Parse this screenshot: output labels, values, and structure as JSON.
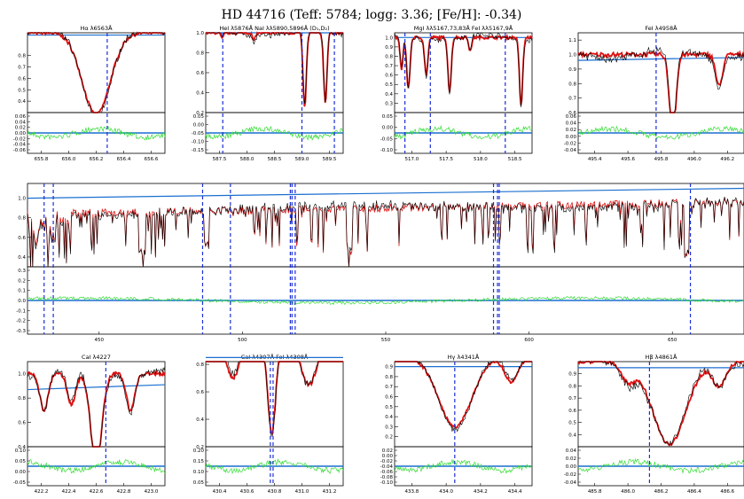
{
  "header": {
    "title": "HD 44716 (Teff: 5784; logg: 3.36; [Fe/H]: -0.34)"
  },
  "colors": {
    "observed": "#000000",
    "model": "#dd1111",
    "continuum": "#1a6fd0",
    "residual": "#33dd33",
    "line_marker": "#1a2fd8",
    "background": "#ffffff"
  },
  "chart_data": [
    {
      "id": "halpha",
      "type": "line",
      "title": "Hα λ6563Å",
      "xticks": [
        "655.8",
        "656.0",
        "656.2",
        "656.4",
        "656.6"
      ],
      "ylim": [
        0.3,
        1.0
      ],
      "yticks": [
        "0.4",
        "0.5",
        "0.6",
        "0.7",
        "0.8"
      ],
      "rticks": [
        "0.06",
        "0.04",
        "0.02",
        "0.00",
        "-0.02",
        "-0.04",
        "-0.06"
      ],
      "line_markers_nm": [
        656.28
      ],
      "continuum": [
        0.98,
        0.98
      ],
      "lines": [
        {
          "c": 0.5,
          "d": 0.72,
          "w": 0.1
        }
      ]
    },
    {
      "id": "hei_nai",
      "type": "line",
      "title": "HeI λ5876Å   NaI λλ5890,5896Å (D₁,D₂)",
      "xticks": [
        "587.5",
        "588.0",
        "588.5",
        "589.0",
        "589.5"
      ],
      "ylim": [
        0.2,
        1.0
      ],
      "yticks": [
        "0.2",
        "0.4",
        "0.6",
        "0.8",
        "1.0"
      ],
      "rticks": [
        "0.05",
        "0.00",
        "-0.05",
        "-0.10",
        "-0.15"
      ],
      "line_markers_nm": [
        587.56,
        589.0,
        589.59
      ],
      "continuum": [
        1.0,
        1.0
      ],
      "lines": [
        {
          "c": 0.72,
          "d": 0.75,
          "w": 0.012
        },
        {
          "c": 0.87,
          "d": 0.7,
          "w": 0.012
        },
        {
          "c": 0.12,
          "d": 0.06,
          "w": 0.01
        },
        {
          "c": 0.35,
          "d": 0.08,
          "w": 0.01
        }
      ]
    },
    {
      "id": "mgi_fei",
      "type": "line",
      "title": "MgI λλ5167,73,83Å   FeI λλ5167,9Å",
      "xticks": [
        "517.0",
        "517.5",
        "518.0",
        "518.5"
      ],
      "ylim": [
        0.2,
        1.05
      ],
      "yticks": [
        "0.3",
        "0.4",
        "0.5",
        "0.6",
        "0.7",
        "0.8",
        "0.9",
        "1.0"
      ],
      "rticks": [
        "0.05",
        "0.00",
        "-0.05",
        "-0.10"
      ],
      "line_markers_nm": [
        516.73,
        516.9,
        517.27,
        518.36
      ],
      "continuum": [
        1.0,
        1.0
      ],
      "lines": [
        {
          "c": 0.1,
          "d": 0.55,
          "w": 0.012
        },
        {
          "c": 0.23,
          "d": 0.4,
          "w": 0.012
        },
        {
          "c": 0.4,
          "d": 0.58,
          "w": 0.012
        },
        {
          "c": 0.92,
          "d": 0.72,
          "w": 0.012
        },
        {
          "c": 0.05,
          "d": 0.35,
          "w": 0.01
        },
        {
          "c": 0.55,
          "d": 0.15,
          "w": 0.01
        }
      ]
    },
    {
      "id": "fei4958",
      "type": "line",
      "title": "FeI λ4958Å",
      "xticks": [
        "495.4",
        "495.6",
        "495.8",
        "496.0",
        "496.2"
      ],
      "ylim": [
        0.6,
        1.15
      ],
      "yticks": [
        "0.6",
        "0.7",
        "0.8",
        "0.9",
        "1.0",
        "1.1"
      ],
      "rticks": [
        "0.06",
        "0.04",
        "0.02",
        "0.00",
        "-0.02",
        "-0.04"
      ],
      "line_markers_nm": [
        495.77
      ],
      "continuum": [
        0.96,
        0.98
      ],
      "lines": [
        {
          "c": 0.57,
          "d": 0.55,
          "w": 0.02
        },
        {
          "c": 0.85,
          "d": 0.22,
          "w": 0.02
        }
      ]
    },
    {
      "id": "overview",
      "type": "line",
      "title": "",
      "xticks": [
        "450",
        "500",
        "550",
        "600",
        "650"
      ],
      "ylim": [
        0.3,
        1.15
      ],
      "yticks": [
        "0.4",
        "0.6",
        "0.8",
        "1.0"
      ],
      "rticks": [
        "0.3",
        "0.2",
        "0.1",
        "0.0",
        "-0.1",
        "-0.2",
        "-0.3"
      ],
      "line_markers_nm": [
        422.7,
        430.8,
        434.0,
        486.1,
        495.8,
        516.7,
        517.3,
        518.4,
        587.6,
        589.0,
        589.6,
        656.3
      ],
      "continuum": [
        1.0,
        1.1
      ],
      "lines": []
    },
    {
      "id": "cai4227",
      "type": "line",
      "title": "CaI λ4227",
      "xticks": [
        "422.2",
        "422.4",
        "422.6",
        "422.8",
        "423.0"
      ],
      "ylim": [
        0.4,
        1.1
      ],
      "yticks": [
        "0.4",
        "0.6",
        "0.8",
        "1.0"
      ],
      "rticks": [
        "0.10",
        "0.05",
        "0.00",
        "-0.05"
      ],
      "line_markers_nm": [
        422.67
      ],
      "continuum": [
        0.87,
        0.91
      ],
      "lines": [
        {
          "c": 0.5,
          "d": 0.75,
          "w": 0.04
        },
        {
          "c": 0.12,
          "d": 0.3,
          "w": 0.03
        },
        {
          "c": 0.32,
          "d": 0.25,
          "w": 0.03
        },
        {
          "c": 0.75,
          "d": 0.3,
          "w": 0.03
        }
      ]
    },
    {
      "id": "cai_fei4308",
      "type": "line",
      "title": "CaI λ4307Å   FeI λ4308Å",
      "xticks": [
        "430.4",
        "430.6",
        "430.8",
        "431.0",
        "431.2"
      ],
      "ylim": [
        0.2,
        0.82
      ],
      "yticks": [
        "0.2",
        "0.4",
        "0.6",
        "0.8"
      ],
      "rticks": [
        "0.20",
        "0.15",
        "0.10",
        "0.05"
      ],
      "line_markers_nm": [
        430.77,
        430.79
      ],
      "continuum": [
        0.85,
        0.85
      ],
      "lines": [
        {
          "c": 0.48,
          "d": 0.7,
          "w": 0.03
        },
        {
          "c": 0.2,
          "d": 0.3,
          "w": 0.05
        },
        {
          "c": 0.75,
          "d": 0.35,
          "w": 0.06
        }
      ]
    },
    {
      "id": "hgamma",
      "type": "line",
      "title": "Hγ λ4341Å",
      "xticks": [
        "433.8",
        "434.0",
        "434.2",
        "434.4"
      ],
      "ylim": [
        0.1,
        0.95
      ],
      "yticks": [
        "0.2",
        "0.3",
        "0.4",
        "0.5",
        "0.6",
        "0.7",
        "0.8",
        "0.9"
      ],
      "rticks": [
        "0.02",
        "0.00",
        "-0.02",
        "-0.04",
        "-0.06",
        "-0.08",
        "-0.10"
      ],
      "line_markers_nm": [
        434.05
      ],
      "continuum": [
        0.9,
        0.9
      ],
      "lines": [
        {
          "c": 0.44,
          "d": 0.7,
          "w": 0.12
        },
        {
          "c": 0.85,
          "d": 0.25,
          "w": 0.05
        }
      ]
    },
    {
      "id": "hbeta",
      "type": "line",
      "title": "Hβ λ4861Å",
      "xticks": [
        "485.8",
        "486.0",
        "486.2",
        "486.4",
        "486.6"
      ],
      "ylim": [
        0.3,
        1.0
      ],
      "yticks": [
        "0.4",
        "0.5",
        "0.6",
        "0.7",
        "0.8",
        "0.9"
      ],
      "rticks": [
        "0.04",
        "0.02",
        "0.00",
        "-0.02",
        "-0.04"
      ],
      "line_markers_nm": [
        486.13
      ],
      "continuum": [
        0.95,
        0.95
      ],
      "lines": [
        {
          "c": 0.55,
          "d": 0.68,
          "w": 0.1
        },
        {
          "c": 0.3,
          "d": 0.15,
          "w": 0.04
        },
        {
          "c": 0.85,
          "d": 0.2,
          "w": 0.04
        }
      ]
    }
  ]
}
